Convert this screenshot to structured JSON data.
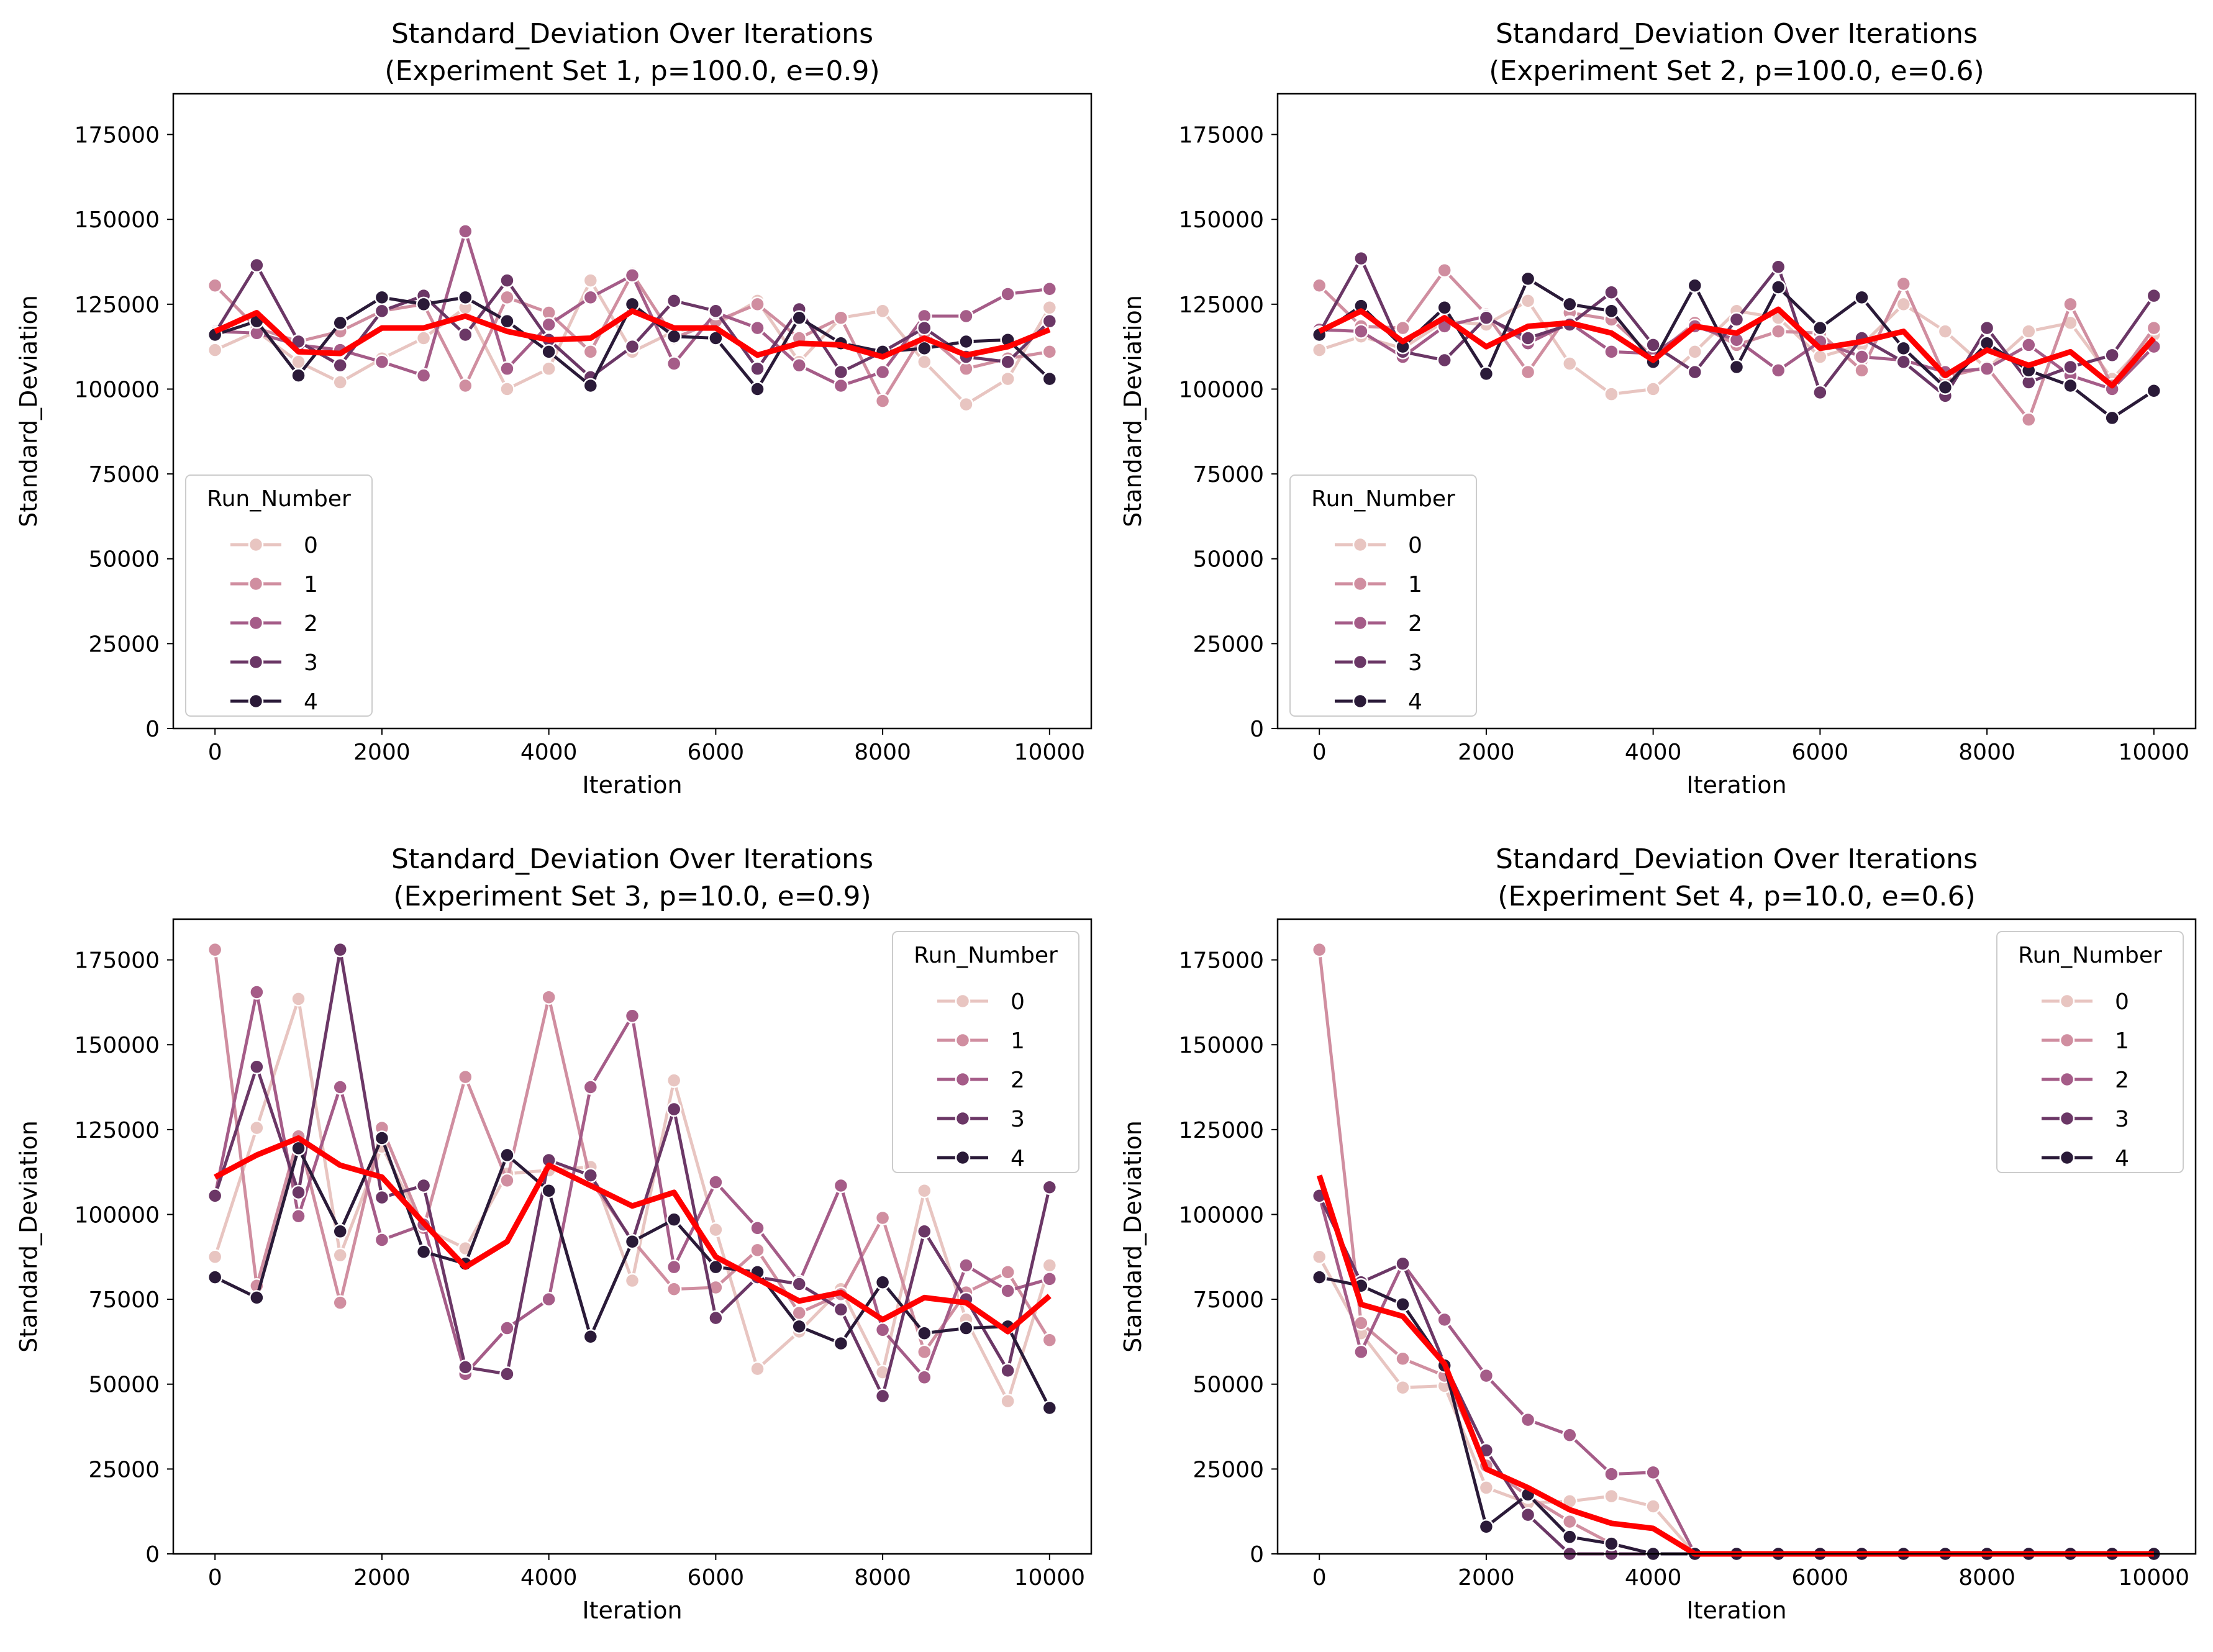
{
  "figure": {
    "series_colors": [
      "#e8c5c1",
      "#d08ea0",
      "#a55c88",
      "#6b3766",
      "#2a1a38"
    ],
    "mean_color": "#ff0000"
  },
  "chart_data": [
    {
      "type": "line",
      "title": "Standard_Deviation Over Iterations\n(Experiment Set 1, p=100.0, e=0.9)",
      "xlabel": "Iteration",
      "ylabel": "Standard_Deviation",
      "xlim": [
        -500,
        10500
      ],
      "ylim": [
        0,
        187000
      ],
      "xticks": [
        0,
        2000,
        4000,
        6000,
        8000,
        10000
      ],
      "yticks": [
        0,
        25000,
        50000,
        75000,
        100000,
        125000,
        150000,
        175000
      ],
      "legend": {
        "title": "Run_Number",
        "placement": "lower-left",
        "entries": [
          "0",
          "1",
          "2",
          "3",
          "4"
        ]
      },
      "grid": false,
      "x": [
        0,
        500,
        1000,
        1500,
        2000,
        2500,
        3000,
        3500,
        4000,
        4500,
        5000,
        5500,
        6000,
        6500,
        7000,
        7500,
        8000,
        8500,
        9000,
        9500,
        10000
      ],
      "series": [
        {
          "name": "0",
          "values": [
            111500,
            117000,
            108000,
            102000,
            109000,
            115000,
            124000,
            100000,
            106000,
            132000,
            111000,
            117000,
            119000,
            126000,
            108000,
            121000,
            123000,
            108000,
            95500,
            103000,
            124000
          ]
        },
        {
          "name": "1",
          "values": [
            130500,
            118000,
            114000,
            117000,
            123000,
            125000,
            101000,
            127000,
            122500,
            111000,
            134000,
            115000,
            120000,
            125000,
            115000,
            121000,
            96500,
            116500,
            106000,
            109000,
            111000
          ]
        },
        {
          "name": "2",
          "values": [
            117000,
            116500,
            113000,
            111500,
            108000,
            104000,
            146500,
            106000,
            119000,
            127000,
            133500,
            107500,
            122500,
            118000,
            107000,
            101000,
            105000,
            121500,
            121500,
            128000,
            129500
          ]
        },
        {
          "name": "3",
          "values": [
            116500,
            136500,
            114000,
            107000,
            123000,
            127500,
            116000,
            132000,
            114500,
            103500,
            112500,
            126000,
            123000,
            106000,
            123500,
            105000,
            111000,
            118000,
            109500,
            108000,
            120000
          ]
        },
        {
          "name": "4",
          "values": [
            116000,
            120000,
            104000,
            119500,
            127000,
            125000,
            127000,
            120000,
            111000,
            101000,
            125000,
            115500,
            115000,
            100000,
            121000,
            113500,
            111000,
            112000,
            114000,
            114500,
            103000
          ]
        }
      ],
      "mean": [
        117000,
        122500,
        111000,
        110500,
        118000,
        118000,
        121500,
        117000,
        114500,
        115000,
        123000,
        118000,
        118000,
        110000,
        113500,
        113000,
        109500,
        115000,
        110000,
        112500,
        117500
      ]
    },
    {
      "type": "line",
      "title": "Standard_Deviation Over Iterations\n(Experiment Set 2, p=100.0, e=0.6)",
      "xlabel": "Iteration",
      "ylabel": "Standard_Deviation",
      "xlim": [
        -500,
        10500
      ],
      "ylim": [
        0,
        187000
      ],
      "xticks": [
        0,
        2000,
        4000,
        6000,
        8000,
        10000
      ],
      "yticks": [
        0,
        25000,
        50000,
        75000,
        100000,
        125000,
        150000,
        175000
      ],
      "legend": {
        "title": "Run_Number",
        "placement": "lower-left",
        "entries": [
          "0",
          "1",
          "2",
          "3",
          "4"
        ]
      },
      "grid": false,
      "x": [
        0,
        500,
        1000,
        1500,
        2000,
        2500,
        3000,
        3500,
        4000,
        4500,
        5000,
        5500,
        6000,
        6500,
        7000,
        7500,
        8000,
        8500,
        9000,
        9500,
        10000
      ],
      "series": [
        {
          "name": "0",
          "values": [
            111500,
            115500,
            112000,
            120000,
            119000,
            126000,
            107500,
            98500,
            100000,
            111000,
            123000,
            121000,
            109500,
            113000,
            125000,
            117000,
            106000,
            117000,
            119500,
            103000,
            116000
          ]
        },
        {
          "name": "1",
          "values": [
            130500,
            118500,
            118000,
            135000,
            122000,
            105000,
            122500,
            120500,
            109500,
            119500,
            113000,
            117000,
            116500,
            105500,
            131000,
            103500,
            106500,
            91000,
            125000,
            101000,
            118000
          ]
        },
        {
          "name": "2",
          "values": [
            117500,
            117000,
            109500,
            118500,
            121500,
            113500,
            119500,
            111000,
            110500,
            118500,
            114500,
            105500,
            114000,
            109500,
            108500,
            105000,
            106000,
            113000,
            104000,
            100000,
            112500
          ]
        },
        {
          "name": "3",
          "values": [
            116500,
            138500,
            111000,
            108500,
            121000,
            115000,
            119000,
            128500,
            113000,
            105000,
            120500,
            136000,
            99000,
            115000,
            108000,
            98000,
            118000,
            102000,
            106500,
            110000,
            127500
          ]
        },
        {
          "name": "4",
          "values": [
            116000,
            124500,
            112500,
            124000,
            104500,
            132500,
            125000,
            123000,
            108000,
            130500,
            106500,
            130000,
            118000,
            127000,
            112000,
            100500,
            113500,
            105500,
            101000,
            91500,
            99500
          ]
        }
      ],
      "mean": [
        117000,
        123000,
        114000,
        121000,
        112500,
        118500,
        119500,
        116500,
        108500,
        118500,
        116500,
        123500,
        112000,
        114000,
        117000,
        104000,
        111500,
        107000,
        111000,
        101000,
        115000
      ]
    },
    {
      "type": "line",
      "title": "Standard_Deviation Over Iterations\n(Experiment Set 3, p=10.0, e=0.9)",
      "xlabel": "Iteration",
      "ylabel": "Standard_Deviation",
      "xlim": [
        -500,
        10500
      ],
      "ylim": [
        0,
        187000
      ],
      "xticks": [
        0,
        2000,
        4000,
        6000,
        8000,
        10000
      ],
      "yticks": [
        0,
        25000,
        50000,
        75000,
        100000,
        125000,
        150000,
        175000
      ],
      "legend": {
        "title": "Run_Number",
        "placement": "upper-right",
        "entries": [
          "0",
          "1",
          "2",
          "3",
          "4"
        ]
      },
      "grid": false,
      "x": [
        0,
        500,
        1000,
        1500,
        2000,
        2500,
        3000,
        3500,
        4000,
        4500,
        5000,
        5500,
        6000,
        6500,
        7000,
        7500,
        8000,
        8500,
        9000,
        9500,
        10000
      ],
      "series": [
        {
          "name": "0",
          "values": [
            87500,
            125500,
            163500,
            88000,
            120000,
            96000,
            90000,
            112000,
            113000,
            114000,
            80500,
            139500,
            95500,
            54500,
            65500,
            78000,
            53500,
            107000,
            69000,
            45000,
            85000
          ]
        },
        {
          "name": "1",
          "values": [
            178000,
            79000,
            123000,
            74000,
            125500,
            96000,
            140500,
            110000,
            164000,
            110000,
            92500,
            78000,
            78500,
            89500,
            71000,
            76500,
            99000,
            59500,
            77000,
            83000,
            63000
          ]
        },
        {
          "name": "2",
          "values": [
            105500,
            165500,
            99500,
            137500,
            92500,
            97000,
            53000,
            66500,
            75000,
            137500,
            158500,
            84500,
            109500,
            96000,
            80000,
            108500,
            66000,
            52000,
            85000,
            77500,
            81000
          ]
        },
        {
          "name": "3",
          "values": [
            105500,
            143500,
            106500,
            178000,
            105000,
            108500,
            55000,
            53000,
            116000,
            111500,
            92000,
            131000,
            69500,
            81500,
            79500,
            72000,
            46500,
            95000,
            75000,
            54000,
            108000
          ]
        },
        {
          "name": "4",
          "values": [
            81500,
            75500,
            119500,
            95000,
            122500,
            89000,
            85500,
            117500,
            107000,
            64000,
            92000,
            98500,
            84500,
            83000,
            67000,
            62000,
            80000,
            65000,
            66500,
            67000,
            43000
          ]
        }
      ],
      "mean": [
        111000,
        117500,
        122500,
        114500,
        111000,
        97500,
        84500,
        92000,
        114500,
        108500,
        102500,
        106500,
        87500,
        81000,
        74500,
        77000,
        69000,
        75500,
        74000,
        65500,
        76000
      ]
    },
    {
      "type": "line",
      "title": "Standard_Deviation Over Iterations\n(Experiment Set 4, p=10.0, e=0.6)",
      "xlabel": "Iteration",
      "ylabel": "Standard_Deviation",
      "xlim": [
        -500,
        10500
      ],
      "ylim": [
        0,
        187000
      ],
      "xticks": [
        0,
        2000,
        4000,
        6000,
        8000,
        10000
      ],
      "yticks": [
        0,
        25000,
        50000,
        75000,
        100000,
        125000,
        150000,
        175000
      ],
      "legend": {
        "title": "Run_Number",
        "placement": "upper-right",
        "entries": [
          "0",
          "1",
          "2",
          "3",
          "4"
        ]
      },
      "grid": false,
      "x": [
        0,
        500,
        1000,
        1500,
        2000,
        2500,
        3000,
        3500,
        4000,
        4500,
        5000,
        5500,
        6000,
        6500,
        7000,
        7500,
        8000,
        8500,
        9000,
        9500,
        10000
      ],
      "series": [
        {
          "name": "0",
          "values": [
            87500,
            65000,
            49000,
            49500,
            19500,
            15000,
            15500,
            17000,
            14000,
            0,
            0,
            0,
            0,
            0,
            0,
            0,
            0,
            0,
            0,
            0,
            0
          ]
        },
        {
          "name": "1",
          "values": [
            178000,
            68000,
            57500,
            52500,
            26000,
            17000,
            9500,
            3000,
            0,
            0,
            0,
            0,
            0,
            0,
            0,
            0,
            0,
            0,
            0,
            0,
            0
          ]
        },
        {
          "name": "2",
          "values": [
            105500,
            59500,
            85500,
            69000,
            52500,
            39500,
            35000,
            23500,
            24000,
            0,
            0,
            0,
            0,
            0,
            0,
            0,
            0,
            0,
            0,
            0,
            0
          ]
        },
        {
          "name": "3",
          "values": [
            105500,
            80000,
            85500,
            56000,
            30500,
            11500,
            0,
            0,
            0,
            0,
            0,
            0,
            0,
            0,
            0,
            0,
            0,
            0,
            0,
            0,
            0
          ]
        },
        {
          "name": "4",
          "values": [
            81500,
            79000,
            73500,
            55500,
            8000,
            17500,
            5000,
            3000,
            0,
            0,
            0,
            0,
            0,
            0,
            0,
            0,
            0,
            0,
            0,
            0,
            0
          ]
        }
      ],
      "mean": [
        111500,
        73500,
        70000,
        56000,
        25000,
        19500,
        13000,
        9000,
        7500,
        0,
        0,
        0,
        0,
        0,
        0,
        0,
        0,
        0,
        0,
        0,
        0
      ]
    }
  ]
}
